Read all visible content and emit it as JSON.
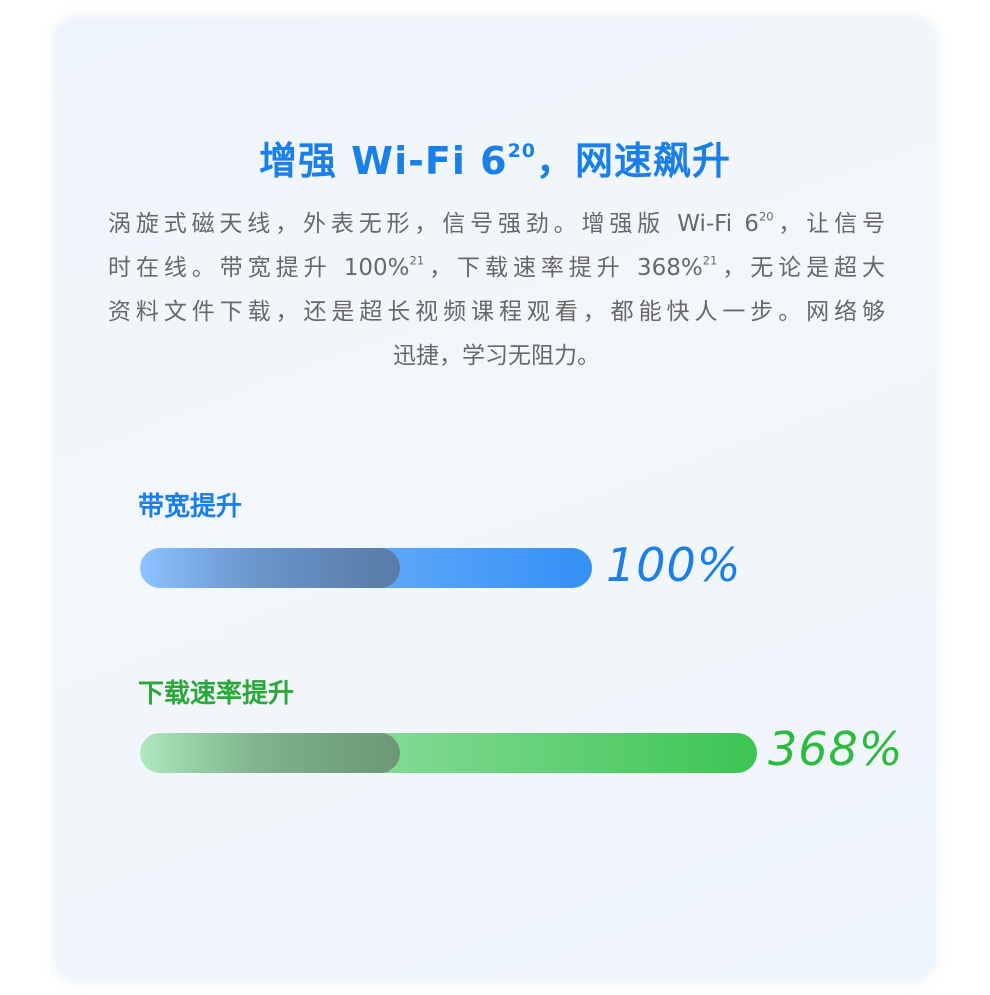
{
  "title": {
    "text": "增强 Wi-Fi 6",
    "sup": "20",
    "rest": "，网速飙升"
  },
  "paragraph": {
    "line1": {
      "a": "涡旋式磁天线，外表无形，信号强劲。增强版 Wi-Fi 6",
      "sup": "20",
      "b": "，让信号"
    },
    "line2": {
      "a": "时在线。带宽提升 100%",
      "sup1": "21",
      "b": "，下载速率提升 368%",
      "sup2": "21",
      "c": "，无论是超大"
    },
    "line3": "资料文件下载，还是超长视频课程观看，都能快人一步。网络够",
    "line4": "迅捷，学习无阻力。"
  },
  "bars": [
    {
      "label": "带宽提升",
      "value_text": "100%",
      "value": 100,
      "color": "#1a7fe8"
    },
    {
      "label": "下载速率提升",
      "value_text": "368%",
      "value": 368,
      "color": "#2dbb3e"
    }
  ]
}
